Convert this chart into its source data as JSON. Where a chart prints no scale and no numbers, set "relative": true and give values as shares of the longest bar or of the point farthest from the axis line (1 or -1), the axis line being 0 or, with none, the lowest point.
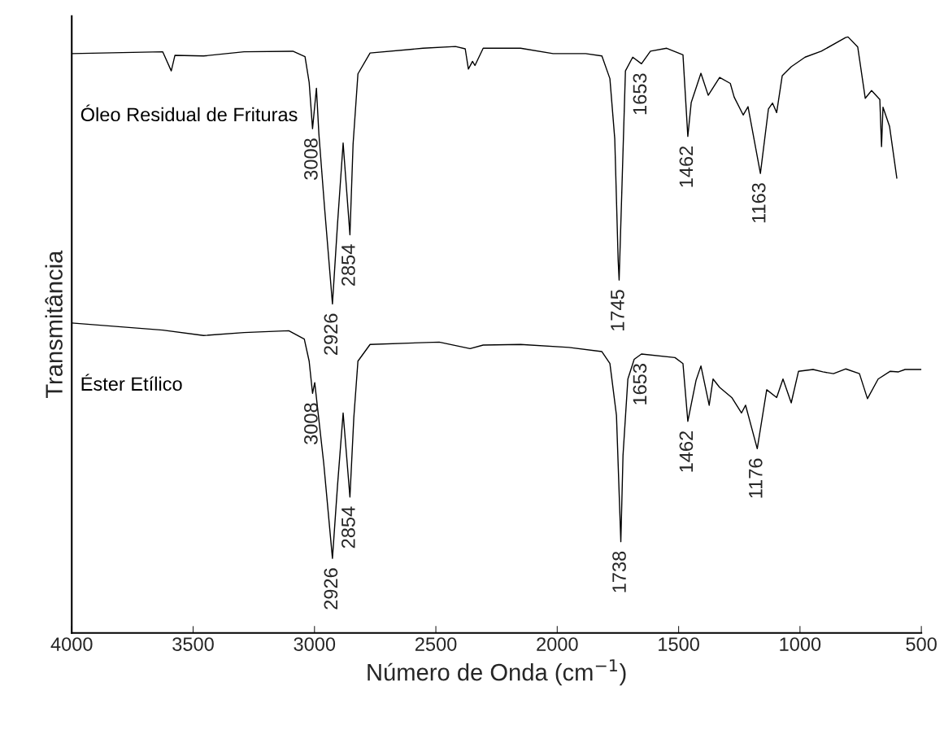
{
  "chart_data": {
    "type": "line",
    "relative": true,
    "xlabel": "Número de Onda (cm$^{−1}$)",
    "ylabel": "Transmitância",
    "xlim": [
      4000,
      500
    ],
    "xticks": [
      4000,
      3500,
      3000,
      2500,
      2000,
      1500,
      1000,
      500
    ],
    "grid": false,
    "legend": false,
    "marker": "none",
    "line_style": "solid",
    "series": [
      {
        "name": "Óleo Residual de Frituras",
        "color": "#000000",
        "x": [
          4000,
          3625,
          3590,
          3575,
          3457,
          3290,
          3089,
          3039,
          3022,
          3008,
          2992,
          2982,
          2958,
          2926,
          2905,
          2882,
          2854,
          2841,
          2821,
          2771,
          2553,
          2419,
          2379,
          2366,
          2349,
          2339,
          2305,
          2151,
          2017,
          1883,
          1816,
          1783,
          1763,
          1749,
          1745,
          1733,
          1719,
          1689,
          1653,
          1616,
          1549,
          1482,
          1462,
          1448,
          1408,
          1378,
          1331,
          1287,
          1271,
          1234,
          1214,
          1163,
          1130,
          1113,
          1096,
          1073,
          1036,
          979,
          912,
          812,
          802,
          762,
          731,
          705,
          671,
          664,
          658,
          631,
          601
        ],
        "values": [
          0.972,
          0.975,
          0.943,
          0.969,
          0.968,
          0.975,
          0.976,
          0.967,
          0.924,
          0.846,
          0.914,
          0.838,
          0.711,
          0.552,
          0.687,
          0.822,
          0.668,
          0.82,
          0.938,
          0.973,
          0.981,
          0.984,
          0.98,
          0.946,
          0.959,
          0.952,
          0.981,
          0.981,
          0.972,
          0.972,
          0.968,
          0.93,
          0.829,
          0.625,
          0.592,
          0.753,
          0.943,
          0.966,
          0.955,
          0.976,
          0.981,
          0.97,
          0.833,
          0.89,
          0.939,
          0.902,
          0.932,
          0.922,
          0.899,
          0.869,
          0.883,
          0.771,
          0.879,
          0.889,
          0.873,
          0.935,
          0.95,
          0.966,
          0.976,
          0.999,
          1.0,
          0.983,
          0.897,
          0.91,
          0.895,
          0.816,
          0.882,
          0.85,
          0.763
        ]
      },
      {
        "name": "Éster Etílico",
        "color": "#000000",
        "x": [
          4000,
          3625,
          3457,
          3290,
          3106,
          3042,
          3022,
          3008,
          2999,
          2962,
          2926,
          2905,
          2882,
          2854,
          2838,
          2821,
          2771,
          2486,
          2359,
          2305,
          2151,
          1952,
          1816,
          1783,
          1756,
          1738,
          1729,
          1709,
          1683,
          1653,
          1515,
          1482,
          1462,
          1428,
          1408,
          1374,
          1358,
          1331,
          1281,
          1241,
          1224,
          1176,
          1137,
          1096,
          1070,
          1036,
          1006,
          946,
          906,
          862,
          812,
          755,
          722,
          678,
          628,
          594,
          567,
          500
        ],
        "values": [
          0.52,
          0.508,
          0.499,
          0.504,
          0.507,
          0.493,
          0.456,
          0.402,
          0.42,
          0.285,
          0.125,
          0.248,
          0.369,
          0.228,
          0.361,
          0.456,
          0.484,
          0.488,
          0.477,
          0.483,
          0.484,
          0.479,
          0.472,
          0.452,
          0.365,
          0.153,
          0.298,
          0.426,
          0.459,
          0.468,
          0.462,
          0.452,
          0.355,
          0.424,
          0.448,
          0.382,
          0.426,
          0.412,
          0.395,
          0.369,
          0.382,
          0.309,
          0.408,
          0.395,
          0.426,
          0.386,
          0.439,
          0.442,
          0.438,
          0.435,
          0.443,
          0.435,
          0.393,
          0.426,
          0.439,
          0.438,
          0.442,
          0.442
        ]
      }
    ],
    "annotations": [
      {
        "text": "3008",
        "x": 3008,
        "y": 0.846
      },
      {
        "text": "2926",
        "x": 2926,
        "y": 0.552
      },
      {
        "text": "2854",
        "x": 2854,
        "y": 0.668
      },
      {
        "text": "1745",
        "x": 1745,
        "y": 0.592
      },
      {
        "text": "1653",
        "x": 1653,
        "y": 0.955
      },
      {
        "text": "1462",
        "x": 1462,
        "y": 0.833
      },
      {
        "text": "1163",
        "x": 1163,
        "y": 0.771
      },
      {
        "text": "3008",
        "x": 3008,
        "y": 0.402
      },
      {
        "text": "2926",
        "x": 2926,
        "y": 0.125
      },
      {
        "text": "2854",
        "x": 2854,
        "y": 0.228
      },
      {
        "text": "1738",
        "x": 1738,
        "y": 0.153
      },
      {
        "text": "1653",
        "x": 1653,
        "y": 0.468
      },
      {
        "text": "1462",
        "x": 1462,
        "y": 0.355
      },
      {
        "text": "1176",
        "x": 1176,
        "y": 0.309
      }
    ]
  }
}
